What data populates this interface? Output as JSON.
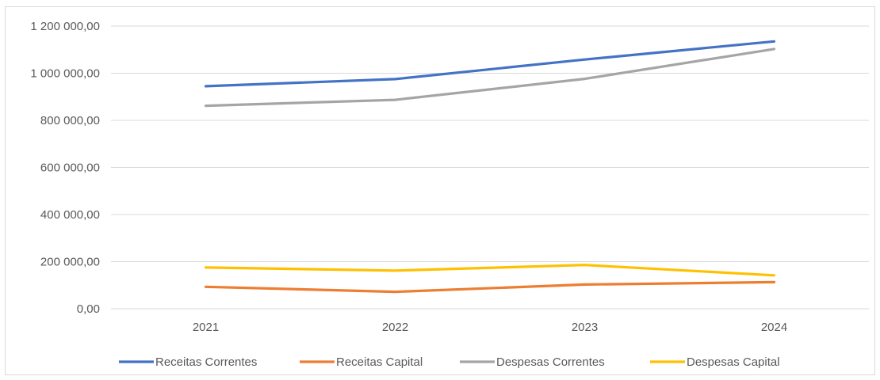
{
  "chart_data": {
    "type": "line",
    "title": "",
    "xlabel": "",
    "ylabel": "",
    "categories": [
      "2021",
      "2022",
      "2023",
      "2024"
    ],
    "ylim": [
      0,
      1200000
    ],
    "yticks": [
      0,
      200000,
      400000,
      600000,
      800000,
      1000000,
      1200000
    ],
    "ytick_labels": [
      "0,00",
      "200 000,00",
      "400 000,00",
      "600 000,00",
      "800 000,00",
      "1 000 000,00",
      "1 200 000,00"
    ],
    "grid": true,
    "legend_position": "bottom",
    "series": [
      {
        "name": "Receitas Correntes",
        "color": "#4472c4",
        "values": [
          945000,
          975000,
          1058000,
          1135000
        ]
      },
      {
        "name": "Receitas Capital",
        "color": "#ed7d31",
        "values": [
          93000,
          72000,
          103000,
          113000
        ]
      },
      {
        "name": "Despesas Correntes",
        "color": "#a5a5a5",
        "values": [
          862000,
          887000,
          976000,
          1103000
        ]
      },
      {
        "name": "Despesas Capital",
        "color": "#ffc000",
        "values": [
          175000,
          162000,
          186000,
          142000
        ]
      }
    ]
  }
}
